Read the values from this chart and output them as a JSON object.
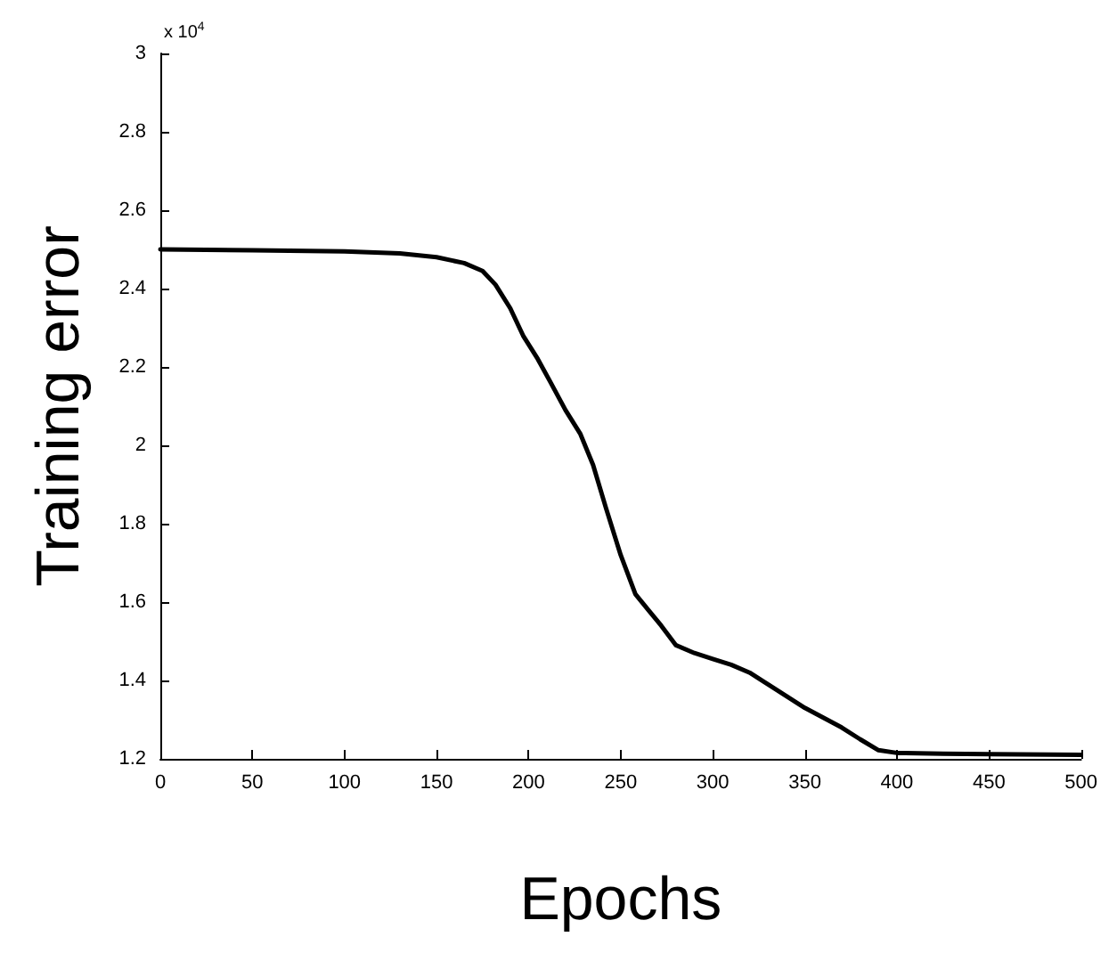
{
  "chart_data": {
    "type": "line",
    "xlabel": "Epochs",
    "ylabel": "Training error",
    "annotations": [
      "x 10$^{4}$"
    ],
    "x": [
      0,
      50,
      100,
      130,
      150,
      165,
      175,
      182,
      190,
      197,
      205,
      212,
      220,
      228,
      235,
      242,
      250,
      258,
      265,
      272,
      280,
      290,
      300,
      310,
      320,
      330,
      340,
      350,
      360,
      370,
      380,
      390,
      400,
      425,
      450,
      500
    ],
    "series": [
      {
        "color": "#000000",
        "values": [
          2.5,
          2.498,
          2.495,
          2.49,
          2.48,
          2.465,
          2.445,
          2.41,
          2.35,
          2.28,
          2.22,
          2.16,
          2.09,
          2.03,
          1.95,
          1.84,
          1.72,
          1.62,
          1.58,
          1.54,
          1.49,
          1.47,
          1.455,
          1.44,
          1.42,
          1.39,
          1.36,
          1.33,
          1.305,
          1.28,
          1.25,
          1.222,
          1.215,
          1.213,
          1.212,
          1.21
        ]
      }
    ],
    "xlim": [
      0,
      500
    ],
    "xticks": [
      0,
      50,
      100,
      150,
      200,
      250,
      300,
      350,
      400,
      450,
      500
    ],
    "ylim": [
      1.2,
      3
    ],
    "yticks": [
      1.2,
      1.4,
      1.6,
      1.8,
      2,
      2.2,
      2.4,
      2.6,
      2.8,
      3
    ],
    "grid": false,
    "marker": "none",
    "line_style": "solid"
  }
}
